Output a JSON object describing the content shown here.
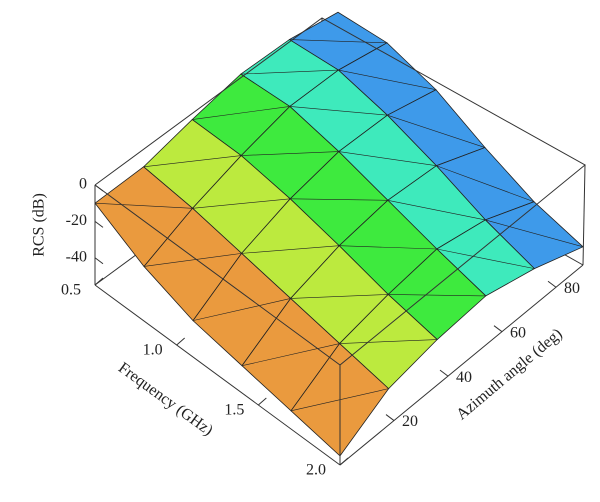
{
  "chart_data": {
    "type": "surface",
    "xlabel": "Frequency (GHz)",
    "ylabel": "Azimuth angle (deg)",
    "zlabel": "RCS (dB)",
    "x": [
      0.5,
      0.8,
      1.1,
      1.4,
      1.7,
      2.0
    ],
    "y": [
      0,
      18,
      36,
      54,
      72,
      90
    ],
    "z": [
      [
        -10,
        -12,
        -8,
        -5,
        -8,
        -15
      ],
      [
        -25,
        -15,
        -8,
        -3,
        -5,
        -12
      ],
      [
        -35,
        -20,
        -12,
        -8,
        -10,
        -18
      ],
      [
        -40,
        -25,
        -18,
        -15,
        -18,
        -30
      ],
      [
        -45,
        -30,
        -25,
        -22,
        -28,
        -40
      ],
      [
        -50,
        -35,
        -30,
        -28,
        -35,
        -45
      ]
    ],
    "xlim": [
      0.5,
      2.0
    ],
    "ylim": [
      0,
      90
    ],
    "zlim": [
      -55,
      0
    ],
    "xticks": [
      0.5,
      {
        "value": 1.0,
        "label": "1.0"
      },
      1.5,
      {
        "value": 2.0,
        "label": "2.0"
      }
    ],
    "yticks": [
      20,
      40,
      60,
      80
    ],
    "zticks": [
      0,
      -20,
      -40
    ]
  }
}
